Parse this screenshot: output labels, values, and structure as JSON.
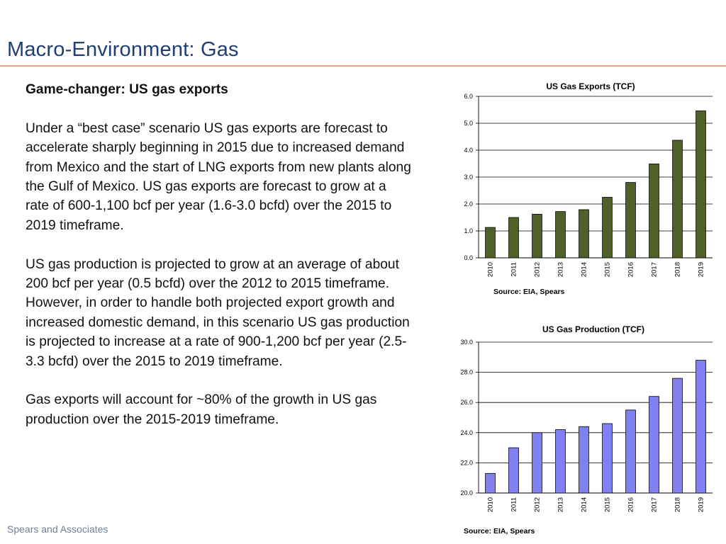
{
  "slide": {
    "title": "Macro-Environment: Gas",
    "footer": "Spears and Associates"
  },
  "body": {
    "heading": "Game-changer: US gas exports",
    "paragraphs": [
      "Under a “best case” scenario US gas exports are forecast to accelerate sharply beginning in 2015 due to increased demand from Mexico and the start of LNG exports from new plants along the Gulf of Mexico.  US gas exports are forecast to grow at a rate of 600-1,100 bcf per year (1.6-3.0 bcfd) over the 2015 to 2019 timeframe.",
      "US gas production is projected to grow at an average of about 200 bcf per year (0.5 bcfd) over the 2012 to 2015 timeframe.  However, in order to handle both projected export growth and increased domestic demand, in this scenario US gas production is projected to increase at a rate of 900-1,200 bcf per year (2.5-3.3 bcfd) over the 2015 to 2019 timeframe.",
      "Gas exports will account for ~80% of the growth in US gas production over the 2015-2019 timeframe."
    ]
  },
  "chart_data": [
    {
      "type": "bar",
      "title": "US Gas Exports (TCF)",
      "source": "Source: EIA,  Spears",
      "categories": [
        "2010",
        "2011",
        "2012",
        "2013",
        "2014",
        "2015",
        "2016",
        "2017",
        "2018",
        "2019"
      ],
      "values": [
        1.13,
        1.5,
        1.62,
        1.72,
        1.79,
        2.25,
        2.8,
        3.49,
        4.37,
        5.46
      ],
      "ylim": [
        0,
        6
      ],
      "yticks": [
        "0.0",
        "1.0",
        "2.0",
        "3.0",
        "4.0",
        "5.0",
        "6.0"
      ],
      "grid": true,
      "bar_color": "#4f6128"
    },
    {
      "type": "bar",
      "title": "US Gas Production (TCF)",
      "source": "Source: EIA,  Spears",
      "categories": [
        "2010",
        "2011",
        "2012",
        "2013",
        "2014",
        "2015",
        "2016",
        "2017",
        "2018",
        "2019"
      ],
      "values": [
        21.3,
        23.0,
        24.0,
        24.2,
        24.4,
        24.6,
        25.5,
        26.4,
        27.6,
        28.8
      ],
      "ylim": [
        20,
        30
      ],
      "yticks": [
        "20.0",
        "22.0",
        "24.0",
        "26.0",
        "28.0",
        "30.0"
      ],
      "grid": true,
      "bar_color": "#8080f0"
    }
  ]
}
